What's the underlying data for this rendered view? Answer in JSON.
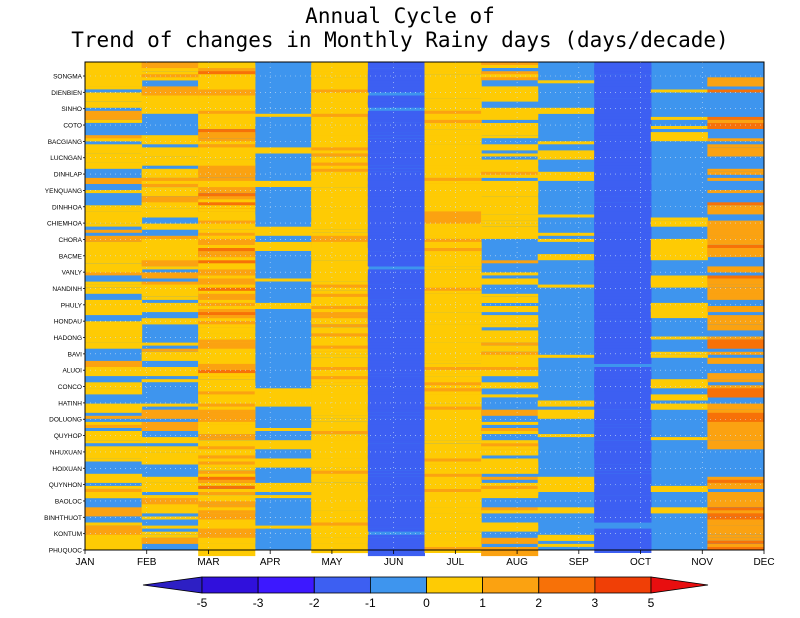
{
  "chart_data": {
    "type": "heatmap",
    "title_lines": [
      "Annual Cycle of",
      "Trend of changes in Monthly Rainy days (days/decade)"
    ],
    "x_categories": [
      "JAN",
      "FEB",
      "MAR",
      "APR",
      "MAY",
      "JUN",
      "JUL",
      "AUG",
      "SEP",
      "OCT",
      "NOV",
      "DEC"
    ],
    "y_stations": [
      "SONGMA",
      "DIENBIEN",
      "SINHO",
      "COTO",
      "BACGIANG",
      "LUCNGAN",
      "DINHLAP",
      "YENQUANG",
      "DINHHOA",
      "CHIEMHOA",
      "CHORA",
      "BACME",
      "VANLY",
      "NANDINH",
      "PHULY",
      "HONDAU",
      "HADONG",
      "BAVI",
      "ALUOI",
      "CONCO",
      "HATINH",
      "DOLUONG",
      "QUYHOP",
      "NHUXUAN",
      "HOIXUAN",
      "QUYNHON",
      "BAOLOC",
      "BINHTHUOT",
      "KONTUM",
      "PHUQUOC"
    ],
    "months_dominant_range": {
      "JAN": [
        -1,
        1
      ],
      "FEB": [
        -1,
        1
      ],
      "MAR": [
        0,
        2
      ],
      "APR": [
        -1,
        0
      ],
      "MAY": [
        0,
        1
      ],
      "JUN": [
        -2,
        -1
      ],
      "JUL": [
        0,
        1
      ],
      "AUG": [
        -1,
        1
      ],
      "SEP": [
        -1,
        0
      ],
      "OCT": [
        -2,
        -1
      ],
      "NOV": [
        -1,
        0
      ],
      "DEC": [
        -1,
        2
      ]
    },
    "colorbar": {
      "boundaries": [
        -5,
        -4,
        -3,
        -2,
        -1,
        0,
        1,
        2,
        3,
        4,
        5
      ],
      "tick_labels": [
        "-5",
        "-3",
        "-2",
        "-1",
        "0",
        "1",
        "2",
        "3",
        "5"
      ],
      "colors": [
        "#2d1fc4",
        "#3010dc",
        "#3d18ff",
        "#3d5ff2",
        "#3e95ee",
        "#fecb04",
        "#fba211",
        "#f77108",
        "#f03f06",
        "#e80e0f"
      ],
      "extend": "both"
    },
    "grid": true
  },
  "colors": {
    "background_field": "#3e95ee",
    "gridline": "#c9dff5"
  }
}
